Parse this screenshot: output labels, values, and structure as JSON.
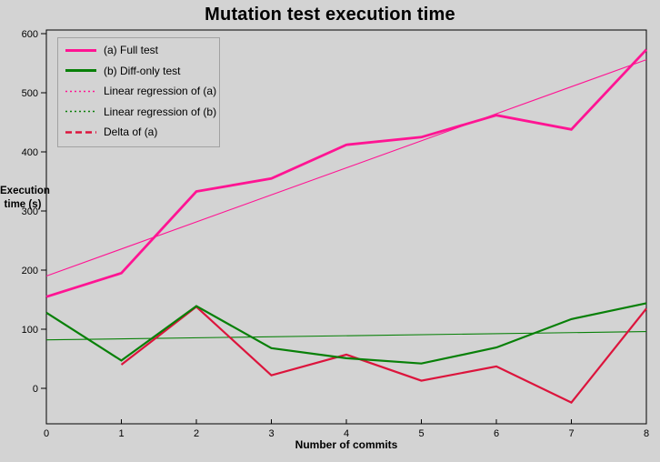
{
  "title": "Mutation test execution time",
  "colors": {
    "background": "#d3d3d3",
    "full_test": "#ff1493",
    "diff_only": "#088008",
    "regression_a": "#ff1493",
    "regression_b": "#088008",
    "delta": "#dc143c",
    "axis": "#000000",
    "legend_border": "#a2a2a2"
  },
  "legend": {
    "items": [
      {
        "label": "(a) Full test",
        "style": "solid-thick",
        "color_key": "full_test"
      },
      {
        "label": "(b) Diff-only test",
        "style": "solid-thick",
        "color_key": "diff_only"
      },
      {
        "label": "Linear regression of (a)",
        "style": "dotted",
        "color_key": "regression_a"
      },
      {
        "label": "Linear regression of (b)",
        "style": "dotted",
        "color_key": "regression_b"
      },
      {
        "label": "Delta of (a)",
        "style": "dashed",
        "color_key": "delta"
      }
    ]
  },
  "chart_data": {
    "type": "line",
    "title": "Mutation test execution time",
    "xlabel": "Number of commits",
    "ylabel": "Execution time (s)",
    "y_label_lines": [
      "Execution",
      "time (s)"
    ],
    "x_ticks": [
      0,
      1,
      2,
      3,
      4,
      5,
      6,
      7,
      8
    ],
    "y_ticks": [
      0,
      100,
      200,
      300,
      400,
      500,
      600
    ],
    "xlim": [
      0,
      8
    ],
    "ylim": [
      -60,
      606
    ],
    "grid": false,
    "legend_position": "top-left",
    "series": [
      {
        "name": "(a) Full test",
        "x": [
          0,
          1,
          2,
          3,
          4,
          5,
          6,
          7,
          8
        ],
        "values": [
          155,
          195,
          333,
          355,
          412,
          425,
          462,
          438,
          573
        ]
      },
      {
        "name": "(b) Diff-only test",
        "x": [
          0,
          1,
          2,
          3,
          4,
          5,
          6,
          7,
          8
        ],
        "values": [
          128,
          47,
          139,
          68,
          51,
          42,
          69,
          117,
          144
        ]
      },
      {
        "name": "Linear regression of (a)",
        "x": [
          0,
          8
        ],
        "values": [
          190,
          556
        ]
      },
      {
        "name": "Linear regression of (b)",
        "x": [
          0,
          8
        ],
        "values": [
          82,
          96
        ]
      },
      {
        "name": "Delta of (a)",
        "x": [
          1,
          2,
          3,
          4,
          5,
          6,
          7,
          8
        ],
        "values": [
          40,
          138,
          22,
          57,
          13,
          37,
          -24,
          135
        ]
      }
    ]
  }
}
